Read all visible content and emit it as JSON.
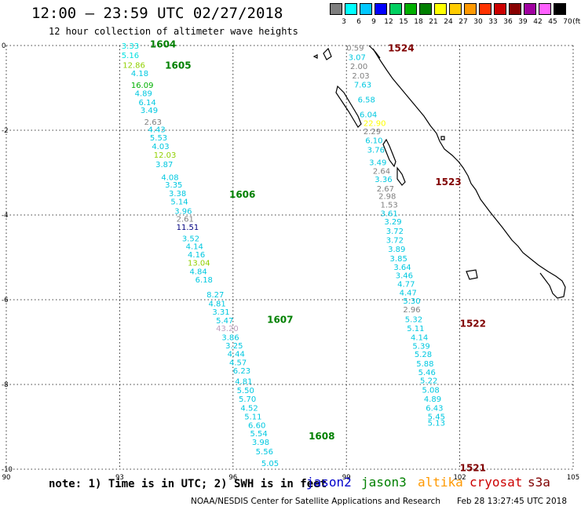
{
  "header": {
    "title": "12:00 – 23:59 UTC 02/27/2018",
    "subtitle": "12 hour collection of altimeter wave heights"
  },
  "legend": {
    "unit": "(ft)",
    "entries": [
      {
        "label": "3",
        "color": "#7f7f7f"
      },
      {
        "label": "6",
        "color": "#00ffff"
      },
      {
        "label": "9",
        "color": "#00c8ff"
      },
      {
        "label": "12",
        "color": "#0000ff"
      },
      {
        "label": "15",
        "color": "#00d060"
      },
      {
        "label": "18",
        "color": "#00b000"
      },
      {
        "label": "21",
        "color": "#008000"
      },
      {
        "label": "24",
        "color": "#ffff00"
      },
      {
        "label": "27",
        "color": "#ffcc00"
      },
      {
        "label": "30",
        "color": "#ff9900"
      },
      {
        "label": "33",
        "color": "#ff3300"
      },
      {
        "label": "36",
        "color": "#cc0000"
      },
      {
        "label": "39",
        "color": "#880000"
      },
      {
        "label": "42",
        "color": "#a000a0"
      },
      {
        "label": "45",
        "color": "#ff60ff"
      },
      {
        "label": "70",
        "color": "#000000"
      }
    ]
  },
  "map": {
    "lon_ticks": [
      "90",
      "93",
      "96",
      "99",
      "102",
      "105"
    ],
    "lat_ticks": [
      "0",
      "-2",
      "-4",
      "-6",
      "-8",
      "-10"
    ],
    "lon_range": [
      90,
      105
    ],
    "lat_range": [
      0,
      -10
    ]
  },
  "tracks": [
    {
      "passes": [
        {
          "label": "1604",
          "lon": 93.8,
          "lat": 0.05,
          "color": "#008000"
        },
        {
          "label": "1605",
          "lon": 94.2,
          "lat": -0.45,
          "color": "#008000"
        },
        {
          "label": "1606",
          "lon": 95.9,
          "lat": -3.5,
          "color": "#008000"
        },
        {
          "label": "1607",
          "lon": 96.9,
          "lat": -6.45,
          "color": "#008000"
        },
        {
          "label": "1608",
          "lon": 98.0,
          "lat": -9.2,
          "color": "#008000"
        }
      ],
      "points": [
        {
          "v": "3.33",
          "lon": 93.05,
          "lat": 0.0,
          "c": "#00e0e0"
        },
        {
          "v": "5.16",
          "lon": 93.05,
          "lat": -0.22,
          "c": "#00e0e0"
        },
        {
          "v": "12.86",
          "lon": 93.08,
          "lat": -0.45,
          "c": "#90d000"
        },
        {
          "v": "4.18",
          "lon": 93.3,
          "lat": -0.65,
          "c": "#00c8e0"
        },
        {
          "v": "16.09",
          "lon": 93.3,
          "lat": -0.93,
          "c": "#00b000"
        },
        {
          "v": "4.89",
          "lon": 93.4,
          "lat": -1.12,
          "c": "#00c8e0"
        },
        {
          "v": "6.14",
          "lon": 93.5,
          "lat": -1.33,
          "c": "#00c8e0"
        },
        {
          "v": "3.49",
          "lon": 93.55,
          "lat": -1.52,
          "c": "#00c8e0"
        },
        {
          "v": "2.63",
          "lon": 93.65,
          "lat": -1.8,
          "c": "#7f7f7f"
        },
        {
          "v": "4.43",
          "lon": 93.75,
          "lat": -1.97,
          "c": "#00c8e0"
        },
        {
          "v": "5.53",
          "lon": 93.8,
          "lat": -2.17,
          "c": "#00c8e0"
        },
        {
          "v": "4.03",
          "lon": 93.85,
          "lat": -2.37,
          "c": "#00c8e0"
        },
        {
          "v": "12.03",
          "lon": 93.9,
          "lat": -2.57,
          "c": "#90d000"
        },
        {
          "v": "3.87",
          "lon": 93.95,
          "lat": -2.8,
          "c": "#00c8e0"
        },
        {
          "v": "4.08",
          "lon": 94.1,
          "lat": -3.1,
          "c": "#00c8e0"
        },
        {
          "v": "3.35",
          "lon": 94.2,
          "lat": -3.28,
          "c": "#00c8e0"
        },
        {
          "v": "3.38",
          "lon": 94.3,
          "lat": -3.48,
          "c": "#00c8e0"
        },
        {
          "v": "5.14",
          "lon": 94.35,
          "lat": -3.68,
          "c": "#00c8e0"
        },
        {
          "v": "3.96",
          "lon": 94.45,
          "lat": -3.9,
          "c": "#00c8e0"
        },
        {
          "v": "2.61",
          "lon": 94.5,
          "lat": -4.08,
          "c": "#7f7f7f"
        },
        {
          "v": "11.51",
          "lon": 94.5,
          "lat": -4.28,
          "c": "#000080"
        },
        {
          "v": "3.52",
          "lon": 94.65,
          "lat": -4.55,
          "c": "#00c8e0"
        },
        {
          "v": "4.14",
          "lon": 94.75,
          "lat": -4.73,
          "c": "#00c8e0"
        },
        {
          "v": "4.16",
          "lon": 94.8,
          "lat": -4.93,
          "c": "#00c8e0"
        },
        {
          "v": "13.04",
          "lon": 94.8,
          "lat": -5.12,
          "c": "#90d000"
        },
        {
          "v": "4.84",
          "lon": 94.85,
          "lat": -5.32,
          "c": "#00c8e0"
        },
        {
          "v": "6.18",
          "lon": 95.0,
          "lat": -5.52,
          "c": "#00c8e0"
        },
        {
          "v": "8.27",
          "lon": 95.3,
          "lat": -5.87,
          "c": "#00c8e0"
        },
        {
          "v": "4.81",
          "lon": 95.35,
          "lat": -6.08,
          "c": "#00c8e0"
        },
        {
          "v": "3.31",
          "lon": 95.45,
          "lat": -6.28,
          "c": "#00c8e0"
        },
        {
          "v": "5.47",
          "lon": 95.55,
          "lat": -6.48,
          "c": "#00c8e0"
        },
        {
          "v": "43.20",
          "lon": 95.55,
          "lat": -6.67,
          "c": "#c0a0c0"
        },
        {
          "v": "3.86",
          "lon": 95.7,
          "lat": -6.88,
          "c": "#00c8e0"
        },
        {
          "v": "3.25",
          "lon": 95.8,
          "lat": -7.07,
          "c": "#00c8e0"
        },
        {
          "v": "4.44",
          "lon": 95.85,
          "lat": -7.27,
          "c": "#00c8e0"
        },
        {
          "v": "4.57",
          "lon": 95.9,
          "lat": -7.47,
          "c": "#00c8e0"
        },
        {
          "v": "6.23",
          "lon": 96.0,
          "lat": -7.67,
          "c": "#00c8e0"
        },
        {
          "v": "4.81",
          "lon": 96.05,
          "lat": -7.92,
          "c": "#00c8e0"
        },
        {
          "v": "5.50",
          "lon": 96.1,
          "lat": -8.13,
          "c": "#00c8e0"
        },
        {
          "v": "5.70",
          "lon": 96.15,
          "lat": -8.33,
          "c": "#00c8e0"
        },
        {
          "v": "4.52",
          "lon": 96.2,
          "lat": -8.55,
          "c": "#00c8e0"
        },
        {
          "v": "5.11",
          "lon": 96.3,
          "lat": -8.75,
          "c": "#00c8e0"
        },
        {
          "v": "6.60",
          "lon": 96.4,
          "lat": -8.95,
          "c": "#00c8e0"
        },
        {
          "v": "5.54",
          "lon": 96.45,
          "lat": -9.15,
          "c": "#00c8e0"
        },
        {
          "v": "3.98",
          "lon": 96.5,
          "lat": -9.35,
          "c": "#00c8e0"
        },
        {
          "v": "5.56",
          "lon": 96.6,
          "lat": -9.57,
          "c": "#00c8e0"
        },
        {
          "v": "5.05",
          "lon": 96.75,
          "lat": -9.85,
          "c": "#00c8e0"
        }
      ]
    },
    {
      "passes": [
        {
          "label": "1524",
          "lon": 100.1,
          "lat": -0.05,
          "color": "#800000"
        },
        {
          "label": "1523",
          "lon": 101.35,
          "lat": -3.2,
          "color": "#800000"
        },
        {
          "label": "1522",
          "lon": 102.0,
          "lat": -6.55,
          "color": "#800000"
        },
        {
          "label": "1521",
          "lon": 102.0,
          "lat": -9.95,
          "color": "#800000"
        }
      ],
      "points": [
        {
          "v": "0.59",
          "lon": 99.0,
          "lat": -0.05,
          "c": "#7f7f7f"
        },
        {
          "v": "3.07",
          "lon": 99.05,
          "lat": -0.27,
          "c": "#00c8e0"
        },
        {
          "v": "2.00",
          "lon": 99.1,
          "lat": -0.48,
          "c": "#7f7f7f"
        },
        {
          "v": "2.03",
          "lon": 99.15,
          "lat": -0.7,
          "c": "#7f7f7f"
        },
        {
          "v": "7.63",
          "lon": 99.2,
          "lat": -0.92,
          "c": "#00c8e0"
        },
        {
          "v": "6.58",
          "lon": 99.3,
          "lat": -1.27,
          "c": "#00c8e0"
        },
        {
          "v": "6.04",
          "lon": 99.35,
          "lat": -1.62,
          "c": "#00c8e0"
        },
        {
          "v": "22.90",
          "lon": 99.45,
          "lat": -1.82,
          "c": "#ffff00"
        },
        {
          "v": "2.29",
          "lon": 99.45,
          "lat": -2.02,
          "c": "#7f7f7f"
        },
        {
          "v": "6.10",
          "lon": 99.5,
          "lat": -2.23,
          "c": "#00c8e0"
        },
        {
          "v": "3.76",
          "lon": 99.55,
          "lat": -2.45,
          "c": "#00c8e0"
        },
        {
          "v": "3.49",
          "lon": 99.6,
          "lat": -2.75,
          "c": "#00c8e0"
        },
        {
          "v": "2.64",
          "lon": 99.7,
          "lat": -2.95,
          "c": "#7f7f7f"
        },
        {
          "v": "3.36",
          "lon": 99.75,
          "lat": -3.15,
          "c": "#00c8e0"
        },
        {
          "v": "2.67",
          "lon": 99.8,
          "lat": -3.37,
          "c": "#7f7f7f"
        },
        {
          "v": "2.98",
          "lon": 99.85,
          "lat": -3.55,
          "c": "#7f7f7f"
        },
        {
          "v": "1.53",
          "lon": 99.9,
          "lat": -3.75,
          "c": "#7f7f7f"
        },
        {
          "v": "3.61",
          "lon": 99.9,
          "lat": -3.95,
          "c": "#00c8e0"
        },
        {
          "v": "3.29",
          "lon": 100.0,
          "lat": -4.15,
          "c": "#00c8e0"
        },
        {
          "v": "3.72",
          "lon": 100.05,
          "lat": -4.37,
          "c": "#00c8e0"
        },
        {
          "v": "3.72",
          "lon": 100.05,
          "lat": -4.58,
          "c": "#00c8e0"
        },
        {
          "v": "3.89",
          "lon": 100.1,
          "lat": -4.8,
          "c": "#00c8e0"
        },
        {
          "v": "3.85",
          "lon": 100.15,
          "lat": -5.02,
          "c": "#00c8e0"
        },
        {
          "v": "3.64",
          "lon": 100.25,
          "lat": -5.22,
          "c": "#00c8e0"
        },
        {
          "v": "3.46",
          "lon": 100.3,
          "lat": -5.42,
          "c": "#00c8e0"
        },
        {
          "v": "4.77",
          "lon": 100.35,
          "lat": -5.62,
          "c": "#00c8e0"
        },
        {
          "v": "4.47",
          "lon": 100.4,
          "lat": -5.82,
          "c": "#00c8e0"
        },
        {
          "v": "5.30",
          "lon": 100.5,
          "lat": -6.02,
          "c": "#00c8e0"
        },
        {
          "v": "2.96",
          "lon": 100.5,
          "lat": -6.22,
          "c": "#7f7f7f"
        },
        {
          "v": "5.32",
          "lon": 100.55,
          "lat": -6.45,
          "c": "#00c8e0"
        },
        {
          "v": "5.11",
          "lon": 100.6,
          "lat": -6.67,
          "c": "#00c8e0"
        },
        {
          "v": "4.14",
          "lon": 100.7,
          "lat": -6.88,
          "c": "#00c8e0"
        },
        {
          "v": "5.39",
          "lon": 100.75,
          "lat": -7.08,
          "c": "#00c8e0"
        },
        {
          "v": "5.28",
          "lon": 100.8,
          "lat": -7.28,
          "c": "#00c8e0"
        },
        {
          "v": "5.88",
          "lon": 100.85,
          "lat": -7.5,
          "c": "#00c8e0"
        },
        {
          "v": "5.46",
          "lon": 100.9,
          "lat": -7.7,
          "c": "#00c8e0"
        },
        {
          "v": "5.22",
          "lon": 100.95,
          "lat": -7.9,
          "c": "#00c8e0"
        },
        {
          "v": "5.08",
          "lon": 101.0,
          "lat": -8.12,
          "c": "#00c8e0"
        },
        {
          "v": "4.89",
          "lon": 101.05,
          "lat": -8.33,
          "c": "#00c8e0"
        },
        {
          "v": "6.43",
          "lon": 101.1,
          "lat": -8.55,
          "c": "#00c8e0"
        },
        {
          "v": "5.45",
          "lon": 101.15,
          "lat": -8.75,
          "c": "#00c8e0"
        },
        {
          "v": "5.13",
          "lon": 101.15,
          "lat": -8.9,
          "c": "#00c8e0"
        }
      ]
    }
  ],
  "footer": {
    "note": "note: 1) Time is in UTC; 2) SWH is in feet",
    "satellites": [
      {
        "name": "jason2",
        "color": "#0000cc"
      },
      {
        "name": "jason3",
        "color": "#008000"
      },
      {
        "name": "altika",
        "color": "#ff9900"
      },
      {
        "name": "cryosat",
        "color": "#cc0000"
      },
      {
        "name": "s3a",
        "color": "#800000"
      }
    ],
    "credit": "NOAA/NESDIS Center for Satellite Applications and Research",
    "timestamp": "Feb 28 13:27:45 UTC 2018"
  }
}
